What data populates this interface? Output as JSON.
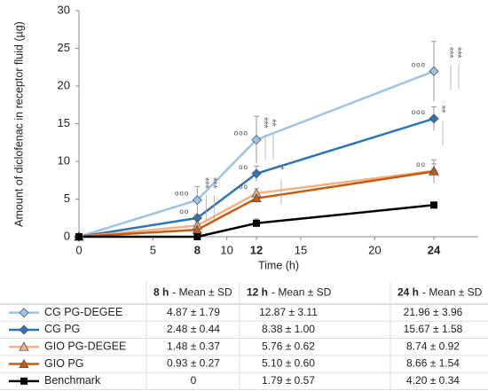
{
  "chart_data": {
    "type": "line",
    "y_label": "Amount of diclofenac in receptor fluid (µg)",
    "x_label": "Time (h)",
    "x": [
      0,
      8,
      12,
      24
    ],
    "xlim": [
      0,
      27
    ],
    "xticks": [
      0,
      5,
      8,
      10,
      12,
      15,
      20,
      24
    ],
    "bold_xticks": [
      8,
      12,
      24
    ],
    "ylim": [
      0,
      30
    ],
    "yticks": [
      0,
      5,
      10,
      15,
      20,
      25,
      30
    ],
    "grid": false,
    "series": [
      {
        "name": "CG PG-DEGEE",
        "color": "#9dc3e6",
        "marker": "diamond",
        "values": [
          0,
          4.87,
          12.87,
          21.96
        ],
        "errors": [
          0,
          1.79,
          3.11,
          3.96
        ]
      },
      {
        "name": "CG PG",
        "color": "#2e75b6",
        "marker": "diamond",
        "values": [
          0,
          2.48,
          8.38,
          15.67
        ],
        "errors": [
          0,
          0.44,
          1.0,
          1.58
        ]
      },
      {
        "name": "GIO PG-DEGEE",
        "color": "#f4b183",
        "marker": "triangle",
        "values": [
          0,
          1.48,
          5.76,
          8.74
        ],
        "errors": [
          0,
          0.37,
          0.62,
          0.92
        ]
      },
      {
        "name": "GIO PG",
        "color": "#c55a11",
        "marker": "triangle",
        "values": [
          0,
          0.93,
          5.1,
          8.66
        ],
        "errors": [
          0,
          0.27,
          0.6,
          1.54
        ]
      },
      {
        "name": "Benchmark",
        "color": "#000000",
        "marker": "square",
        "values": [
          0,
          0,
          1.79,
          4.2
        ],
        "errors": [
          0,
          0,
          0.57,
          0.34
        ]
      }
    ],
    "annotations": [
      {
        "text": "ooo",
        "x": 8,
        "y": 4.87
      },
      {
        "text": "oo",
        "x": 8,
        "y": 2.48
      },
      {
        "text": "ooo",
        "x": 12,
        "y": 12.87
      },
      {
        "text": "oo",
        "x": 12,
        "y": 8.38
      },
      {
        "text": "oo",
        "x": 12,
        "y": 5.76
      },
      {
        "text": "ooo",
        "x": 24,
        "y": 21.96
      },
      {
        "text": "ooo",
        "x": 24,
        "y": 15.67
      },
      {
        "text": "oo",
        "x": 24,
        "y": 8.74
      },
      {
        "text": "***",
        "x": 8,
        "y": 7.2,
        "vertical": true
      },
      {
        "text": "***",
        "x": 8,
        "y": 7.2,
        "vertical": true
      },
      {
        "text": "***",
        "x": 12,
        "y": 15.2,
        "vertical": true
      },
      {
        "text": "**",
        "x": 12,
        "y": 15.2,
        "vertical": true
      },
      {
        "text": "*",
        "x": 12,
        "y": 9.2,
        "vertical": true
      },
      {
        "text": "**",
        "x": 24,
        "y": 17,
        "vertical": true
      },
      {
        "text": "***",
        "x": 24,
        "y": 24.5,
        "vertical": true
      },
      {
        "text": "***",
        "x": 24,
        "y": 24.5,
        "vertical": true
      }
    ]
  },
  "table": {
    "header": [
      [
        "8 h",
        "- Mean ± SD"
      ],
      [
        "12 h",
        "- Mean ± SD"
      ],
      [
        "24 h",
        "- Mean ± SD"
      ]
    ],
    "rows": [
      [
        "4.87 ± 1.79",
        "12.87 ± 3.11",
        "21.96 ± 3.96"
      ],
      [
        "2.48 ± 0.44",
        "8.38 ± 1.00",
        "15.67 ± 1.58"
      ],
      [
        "1.48 ± 0.37",
        "5.76 ± 0.62",
        "8.74 ± 0.92"
      ],
      [
        "0.93 ± 0.27",
        "5.10 ± 0.60",
        "8.66 ± 1.54"
      ],
      [
        "0",
        "1.79 ± 0.57",
        "4.20 ± 0.34"
      ]
    ]
  }
}
